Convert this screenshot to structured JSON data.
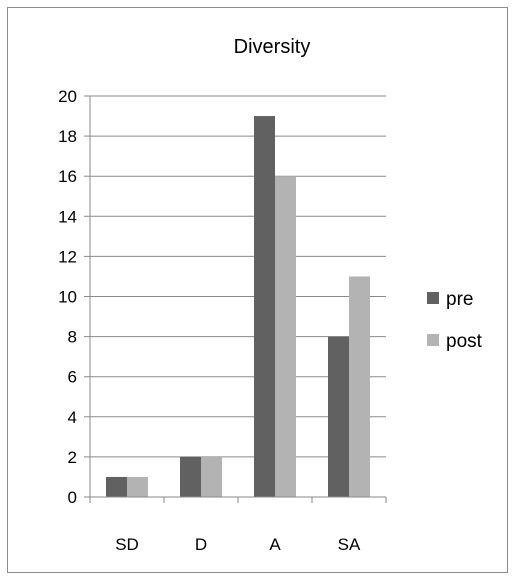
{
  "chart_data": {
    "type": "bar",
    "title": "Diversity",
    "categories": [
      "SD",
      "D",
      "A",
      "SA"
    ],
    "series": [
      {
        "name": "pre",
        "values": [
          1,
          2,
          19,
          8
        ],
        "color": "#616161"
      },
      {
        "name": "post",
        "values": [
          1,
          2,
          16,
          11
        ],
        "color": "#b3b3b3"
      }
    ],
    "ylim": [
      0,
      20
    ],
    "yticks": [
      0,
      2,
      4,
      6,
      8,
      10,
      12,
      14,
      16,
      18,
      20
    ],
    "grid": true,
    "legend": "right",
    "xlabel": "",
    "ylabel": ""
  }
}
